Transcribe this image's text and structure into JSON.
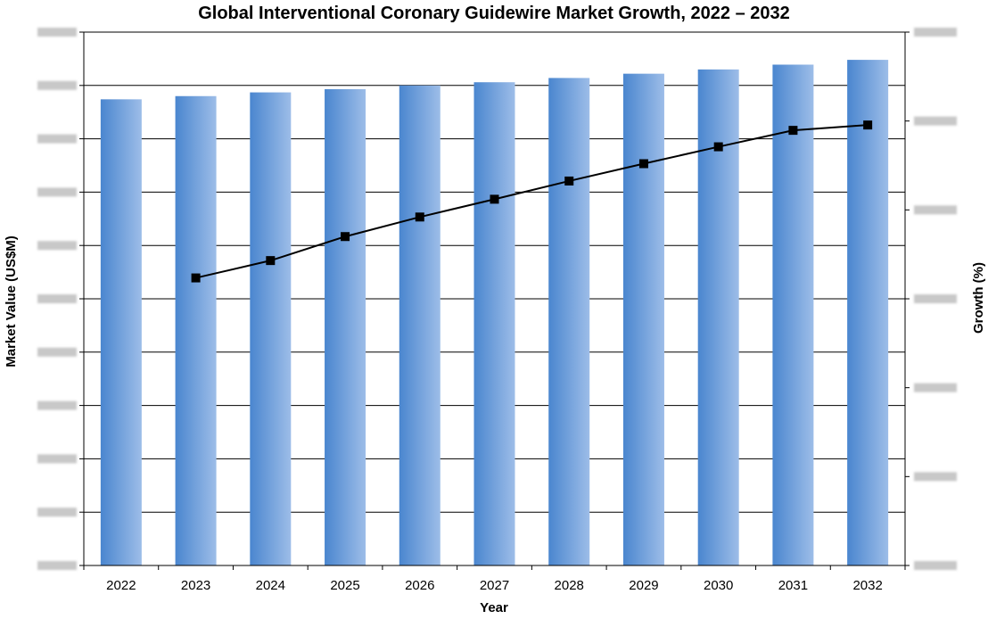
{
  "chart_data": {
    "type": "bar",
    "title": "Global Interventional Coronary Guidewire Market Growth, 2022 – 2032",
    "xlabel": "Year",
    "ylabel": "Market Value (US$M)",
    "y2label": "Growth (%)",
    "categories": [
      "2022",
      "2023",
      "2024",
      "2025",
      "2026",
      "2027",
      "2028",
      "2029",
      "2030",
      "2031",
      "2032"
    ],
    "series": [
      {
        "type": "bar",
        "axis": "left",
        "values": [
          874,
          880,
          887,
          893,
          900,
          906,
          914,
          922,
          930,
          939,
          948
        ]
      },
      {
        "type": "line",
        "axis": "right",
        "values": [
          null,
          0.647,
          0.686,
          0.74,
          0.784,
          0.824,
          0.865,
          0.904,
          0.942,
          0.979,
          0.991
        ]
      }
    ],
    "ylim": [
      0,
      1000
    ],
    "y2lim": [
      0,
      1.2
    ],
    "yticks_count": 11,
    "y2ticks_count": 7,
    "grid": true,
    "legend": "none",
    "colors": {
      "bar_dark": "#4a86cf",
      "bar_light": "#9dbde8",
      "line": "#000000",
      "grid": "#000000"
    }
  }
}
